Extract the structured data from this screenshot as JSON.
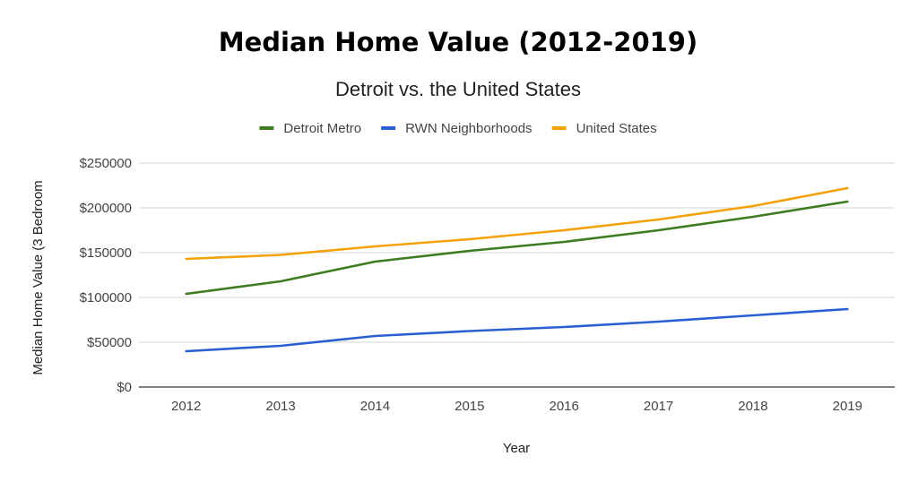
{
  "chart_data": {
    "type": "line",
    "title": "Median Home Value (2012-2019)",
    "subtitle": "Detroit vs. the United States",
    "xlabel": "Year",
    "ylabel": "Median Home Value (3 Bedroom",
    "categories": [
      "2012",
      "2013",
      "2014",
      "2015",
      "2016",
      "2017",
      "2018",
      "2019"
    ],
    "ylim": [
      0,
      250000
    ],
    "yticks": [
      0,
      50000,
      100000,
      150000,
      200000,
      250000
    ],
    "ytick_labels": [
      "$0",
      "$50000",
      "$100000",
      "$150000",
      "$200000",
      "$250000"
    ],
    "grid": true,
    "legend_position": "top-center",
    "series": [
      {
        "name": "Detroit Metro",
        "color": "#3c7d22",
        "values": [
          104000,
          118000,
          140000,
          152000,
          162000,
          175000,
          190000,
          207000
        ]
      },
      {
        "name": "RWN Neighborhoods",
        "color": "#2a5fd1",
        "values": [
          40000,
          46000,
          57000,
          62500,
          67000,
          73000,
          80000,
          87000
        ]
      },
      {
        "name": "United States",
        "color": "#f5a20a",
        "values": [
          143000,
          147500,
          157000,
          165000,
          175000,
          187000,
          202000,
          222000
        ]
      }
    ]
  }
}
